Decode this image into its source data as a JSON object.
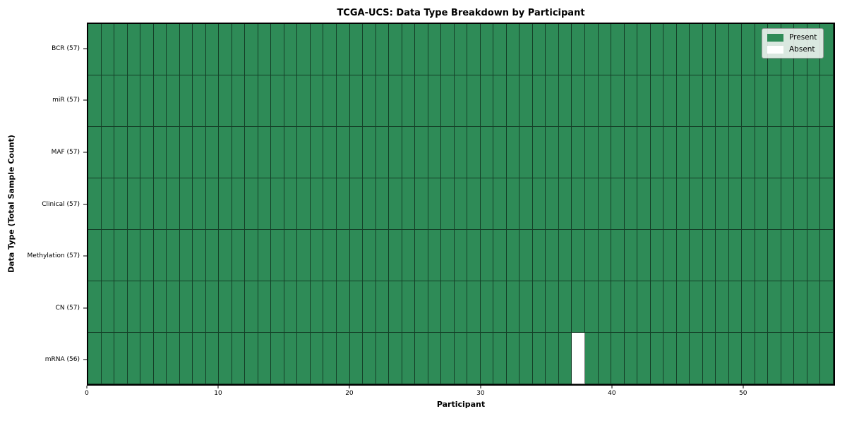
{
  "chart_data": {
    "type": "heatmap",
    "title": "TCGA-UCS: Data Type Breakdown by Participant",
    "xlabel": "Participant",
    "ylabel": "Data Type (Total Sample Count)",
    "x_ticks": [
      0,
      10,
      20,
      30,
      40,
      50
    ],
    "x_range": [
      0,
      57
    ],
    "n_participants": 57,
    "rows": [
      {
        "label": "BCR (57)",
        "data_type": "BCR",
        "present_count": 57,
        "absent_indices": []
      },
      {
        "label": "miR (57)",
        "data_type": "miR",
        "present_count": 57,
        "absent_indices": []
      },
      {
        "label": "MAF (57)",
        "data_type": "MAF",
        "present_count": 57,
        "absent_indices": []
      },
      {
        "label": "Clinical (57)",
        "data_type": "Clinical",
        "present_count": 57,
        "absent_indices": []
      },
      {
        "label": "Methylation (57)",
        "data_type": "Methylation",
        "present_count": 57,
        "absent_indices": []
      },
      {
        "label": "CN (57)",
        "data_type": "CN",
        "present_count": 57,
        "absent_indices": []
      },
      {
        "label": "mRNA (56)",
        "data_type": "mRNA",
        "present_count": 56,
        "absent_indices": [
          37
        ]
      }
    ],
    "legend": {
      "position": "upper right",
      "entries": [
        {
          "label": "Present",
          "color": "#2E8B57"
        },
        {
          "label": "Absent",
          "color": "#FFFFFF"
        }
      ]
    },
    "colors": {
      "present": "#2E8B57",
      "absent": "#FFFFFF",
      "grid_line": "rgba(0,0,0,0.55)",
      "spine": "#000000",
      "background": "#FFFFFF"
    }
  }
}
